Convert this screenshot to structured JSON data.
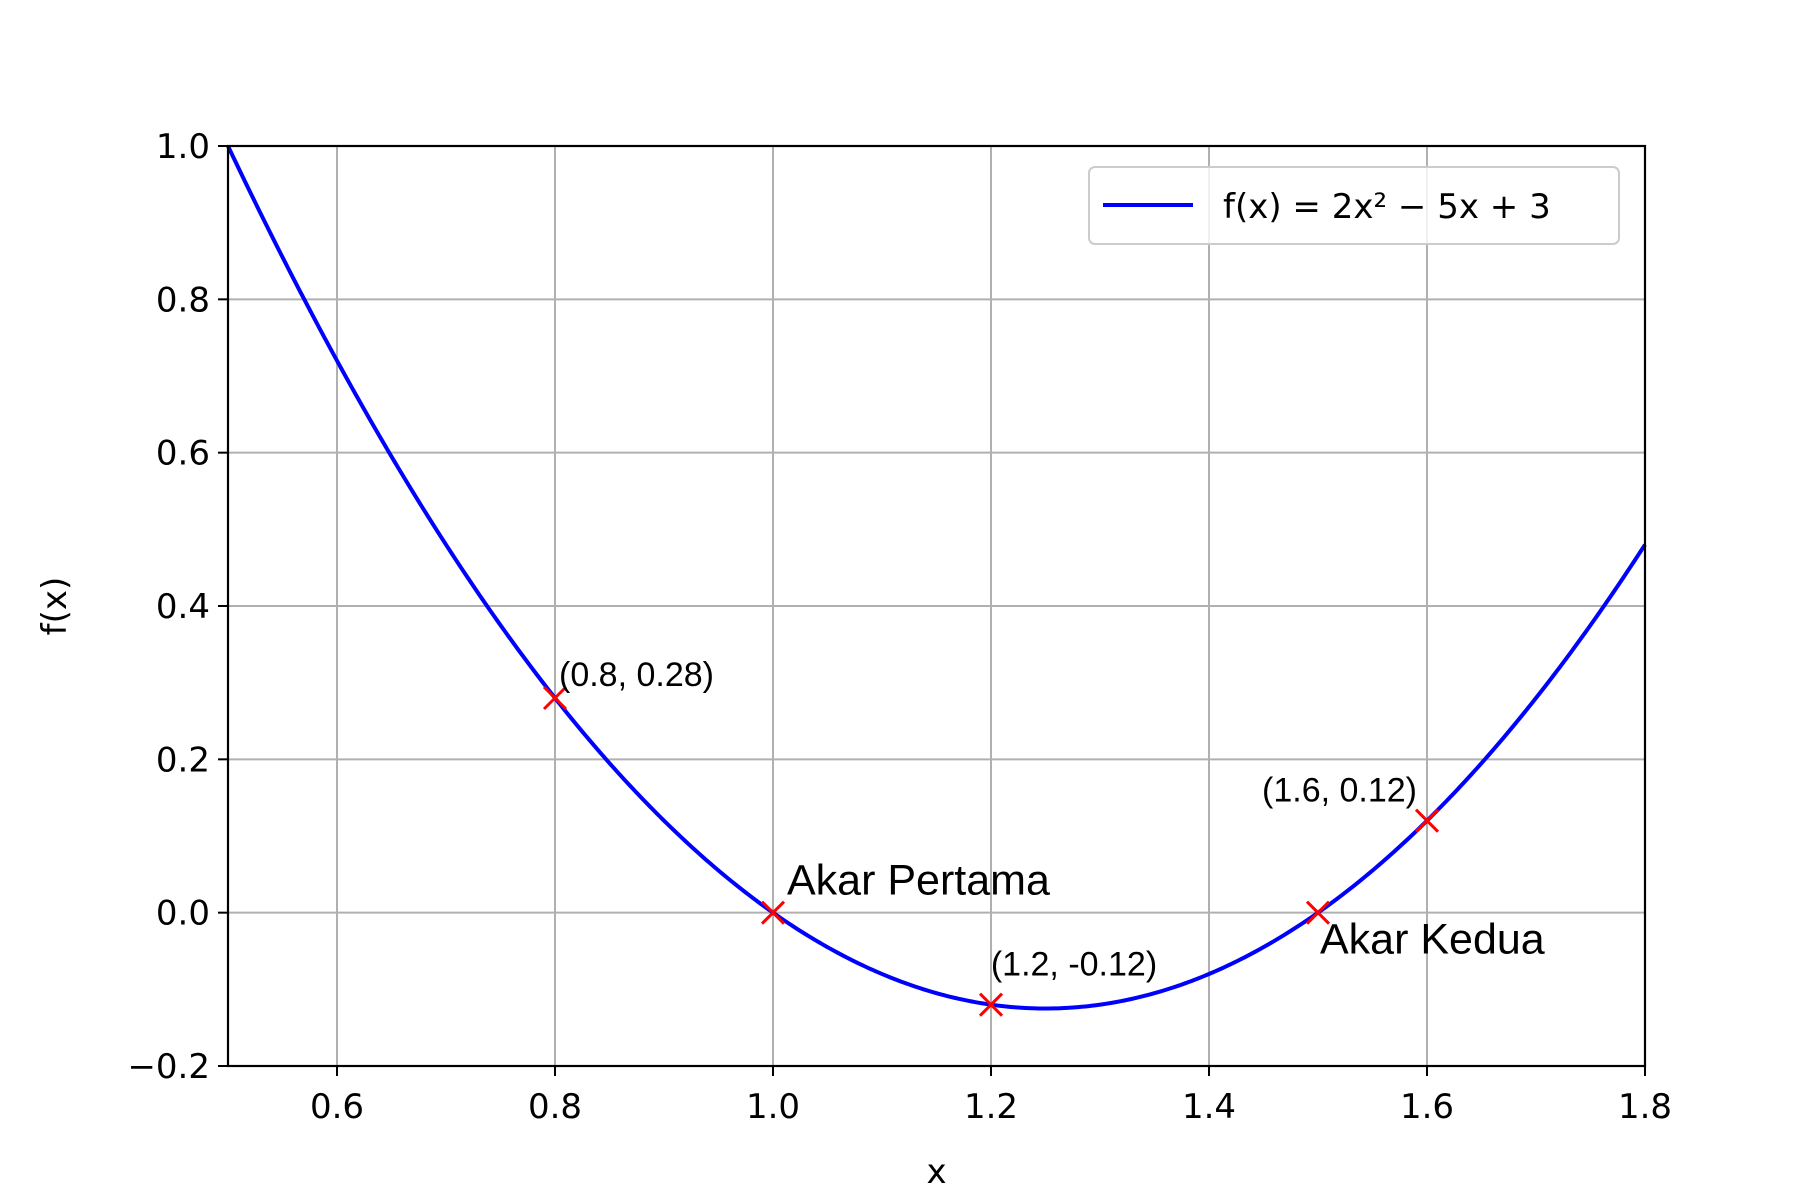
{
  "chart_data": {
    "type": "line",
    "title": "",
    "xlabel": "x",
    "ylabel": "f(x)",
    "xlim": [
      0.5,
      1.8
    ],
    "ylim": [
      -0.2,
      1.0
    ],
    "grid": true,
    "x_ticks": [
      "0.6",
      "0.8",
      "1.0",
      "1.2",
      "1.4",
      "1.6",
      "1.8"
    ],
    "y_ticks": [
      "−0.2",
      "0.0",
      "0.2",
      "0.4",
      "0.6",
      "0.8",
      "1.0"
    ],
    "legend": {
      "position": "upper-right"
    },
    "series": [
      {
        "name": "f(x) = 2x² − 5x + 3",
        "color": "#0000ff",
        "function": {
          "a": 2,
          "b": -5,
          "c": 3
        }
      }
    ],
    "points": [
      {
        "x": 0.8,
        "y": 0.28,
        "label": "(0.8, 0.28)"
      },
      {
        "x": 1.0,
        "y": 0.0,
        "label": "Akar Pertama"
      },
      {
        "x": 1.2,
        "y": -0.12,
        "label": "(1.2, -0.12)"
      },
      {
        "x": 1.5,
        "y": 0.0,
        "label": "Akar Kedua"
      },
      {
        "x": 1.6,
        "y": 0.12,
        "label": "(1.6, 0.12)"
      }
    ],
    "marker": {
      "shape": "x",
      "color": "#ff0000"
    }
  }
}
